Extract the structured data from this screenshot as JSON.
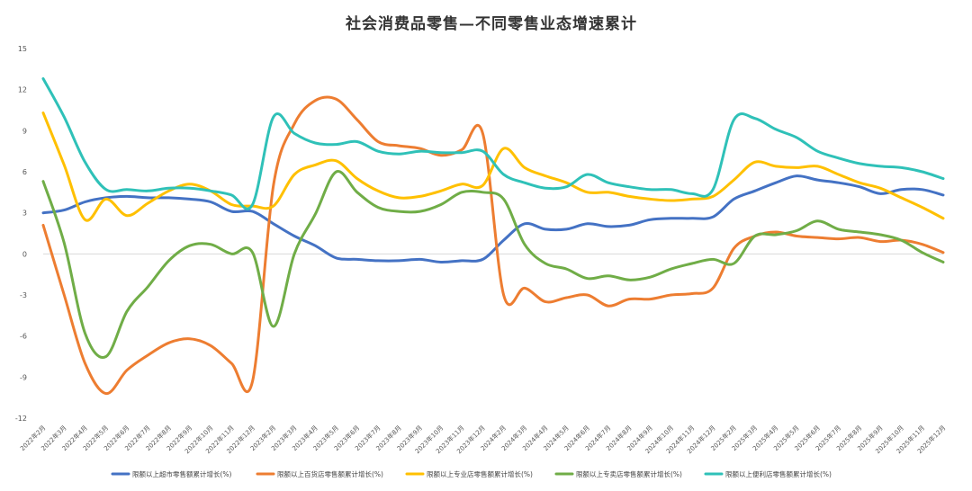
{
  "chart_data": {
    "type": "line",
    "title": "社会消费品零售—不同零售业态增速累计",
    "ylim": [
      -12,
      15
    ],
    "yticks": [
      15,
      12,
      9,
      6,
      3,
      0,
      -3,
      -6,
      -9,
      -12
    ],
    "grid": true,
    "legend_position": "bottom",
    "x": [
      "2022年2月",
      "2022年3月",
      "2022年4月",
      "2022年5月",
      "2022年6月",
      "2022年7月",
      "2022年8月",
      "2022年9月",
      "2022年10月",
      "2022年11月",
      "2022年12月",
      "2023年2月",
      "2023年3月",
      "2023年4月",
      "2023年5月",
      "2023年6月",
      "2023年7月",
      "2023年8月",
      "2023年9月",
      "2023年10月",
      "2023年11月",
      "2023年12月",
      "2024年2月",
      "2024年3月",
      "2024年4月",
      "2024年5月",
      "2024年6月",
      "2024年7月",
      "2024年8月",
      "2024年9月",
      "2024年10月",
      "2024年11月",
      "2024年12月",
      "2025年2月",
      "2025年3月",
      "2025年4月",
      "2025年5月",
      "2025年6月",
      "2025年7月",
      "2025年8月",
      "2025年9月",
      "2025年10月",
      "2025年11月",
      "2025年12月"
    ],
    "series": [
      {
        "name": "限额以上超市零售额累计增长(%)",
        "color": "#4472C4",
        "values": [
          3.0,
          3.2,
          3.8,
          4.1,
          4.2,
          4.1,
          4.1,
          4.0,
          3.8,
          3.1,
          3.1,
          2.2,
          1.3,
          0.6,
          -0.3,
          -0.4,
          -0.5,
          -0.5,
          -0.4,
          -0.6,
          -0.5,
          -0.4,
          1.0,
          2.2,
          1.8,
          1.8,
          2.2,
          2.0,
          2.1,
          2.5,
          2.6,
          2.6,
          2.7,
          4.0,
          4.6,
          5.2,
          5.7,
          5.4,
          5.2,
          4.9,
          4.4,
          4.7,
          4.7,
          4.3
        ]
      },
      {
        "name": "限额以上百货店零售额累计增长(%)",
        "color": "#ED7D31",
        "values": [
          2.1,
          -3.0,
          -8.0,
          -10.2,
          -8.5,
          -7.4,
          -6.5,
          -6.2,
          -6.7,
          -8.0,
          -9.3,
          5.0,
          9.5,
          11.2,
          11.3,
          9.8,
          8.2,
          7.9,
          7.7,
          7.2,
          7.6,
          8.8,
          -3.0,
          -2.5,
          -3.5,
          -3.2,
          -3.0,
          -3.8,
          -3.3,
          -3.3,
          -3.0,
          -2.9,
          -2.5,
          0.4,
          1.3,
          1.6,
          1.3,
          1.2,
          1.1,
          1.2,
          0.9,
          1.0,
          0.7,
          0.1
        ]
      },
      {
        "name": "限额以上专业店零售额累计增长(%)",
        "color": "#FFC000",
        "values": [
          10.3,
          6.5,
          2.5,
          4.0,
          2.8,
          3.7,
          4.6,
          5.1,
          4.6,
          3.6,
          3.5,
          3.5,
          5.8,
          6.5,
          6.8,
          5.5,
          4.6,
          4.1,
          4.2,
          4.6,
          5.1,
          5.0,
          7.7,
          6.3,
          5.7,
          5.2,
          4.5,
          4.5,
          4.2,
          4.0,
          3.9,
          4.0,
          4.2,
          5.4,
          6.7,
          6.4,
          6.3,
          6.4,
          5.8,
          5.2,
          4.8,
          4.1,
          3.4,
          2.6
        ]
      },
      {
        "name": "限额以上专卖店零售额累计增长(%)",
        "color": "#70AD47",
        "values": [
          5.3,
          0.8,
          -5.8,
          -7.5,
          -4.2,
          -2.4,
          -0.5,
          0.6,
          0.7,
          0.0,
          0.1,
          -5.3,
          0.0,
          2.9,
          6.0,
          4.5,
          3.4,
          3.1,
          3.1,
          3.6,
          4.5,
          4.5,
          4.0,
          0.7,
          -0.7,
          -1.1,
          -1.8,
          -1.6,
          -1.9,
          -1.7,
          -1.1,
          -0.7,
          -0.4,
          -0.7,
          1.3,
          1.4,
          1.7,
          2.4,
          1.8,
          1.6,
          1.4,
          1.0,
          0.1,
          -0.6
        ]
      },
      {
        "name": "限额以上便利店零售额累计增长(%)",
        "color": "#2FC1B8",
        "values": [
          12.8,
          10.0,
          6.7,
          4.7,
          4.7,
          4.6,
          4.8,
          4.8,
          4.6,
          4.3,
          3.6,
          10.0,
          8.8,
          8.1,
          8.0,
          8.2,
          7.5,
          7.3,
          7.5,
          7.4,
          7.4,
          7.5,
          5.8,
          5.2,
          4.8,
          4.9,
          5.8,
          5.2,
          4.9,
          4.7,
          4.7,
          4.4,
          4.7,
          9.8,
          9.9,
          9.1,
          8.5,
          7.5,
          7.0,
          6.6,
          6.4,
          6.3,
          6.0,
          5.5
        ]
      }
    ]
  }
}
